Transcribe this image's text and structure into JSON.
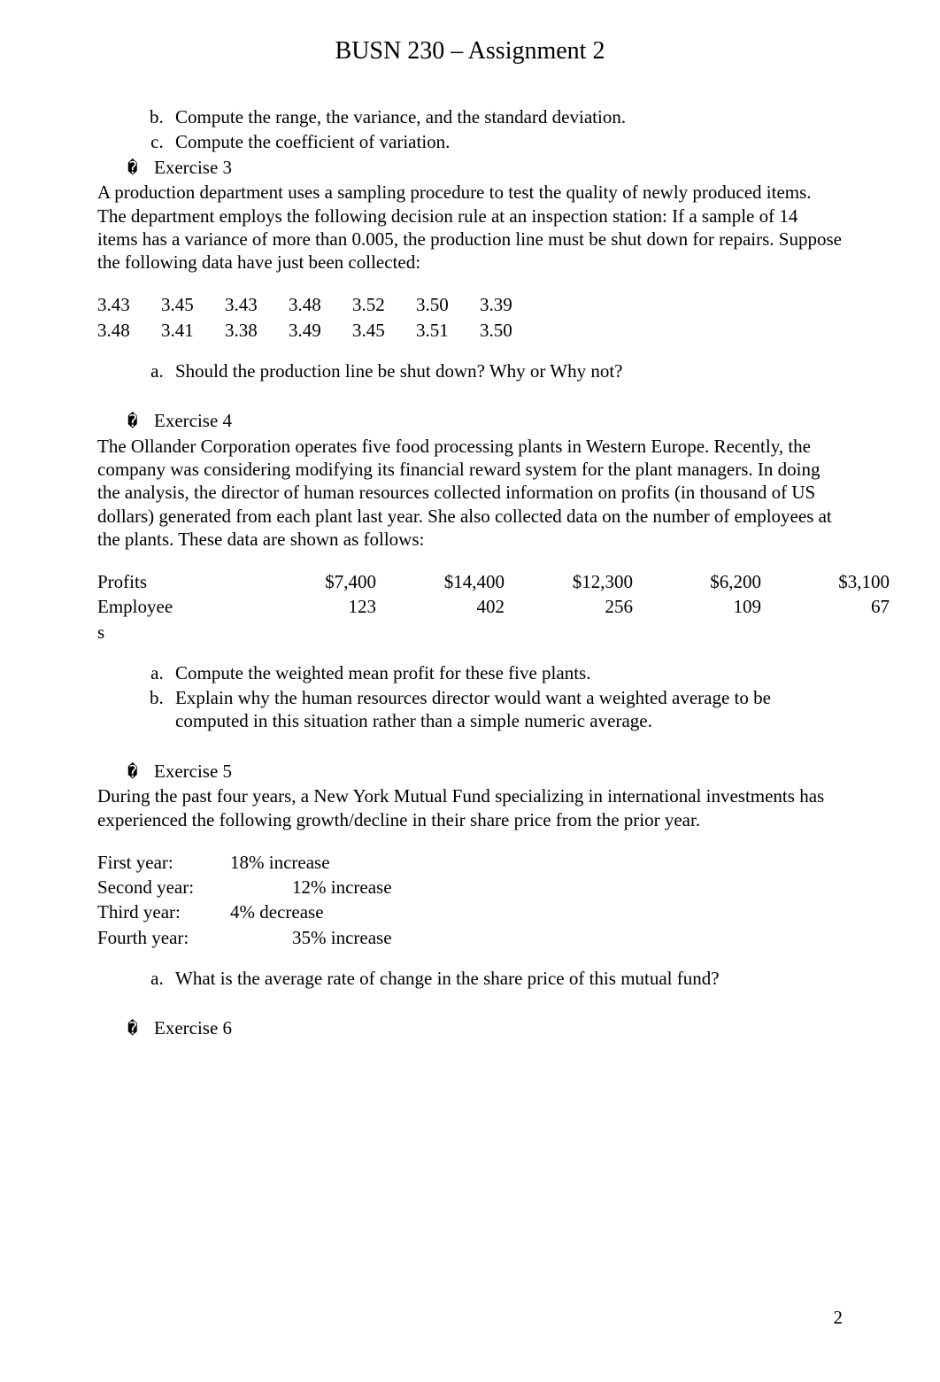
{
  "title": "BUSN 230 – Assignment 2",
  "page_number": "2",
  "bullet_glyph": "�",
  "continued_list": {
    "b": "Compute the range, the variance, and the standard deviation.",
    "c": "Compute the coefficient of variation."
  },
  "ex3": {
    "heading": "Exercise 3",
    "body": "A production department uses a sampling procedure to test the quality of newly produced items. The department employs the following decision rule at an inspection station: If a sample of 14 items has a variance of more than 0.005, the production line must be shut down for repairs. Suppose the following data have just been collected:",
    "data_row1": [
      "3.43",
      "3.45",
      "3.43",
      "3.48",
      "3.52",
      "3.50",
      "3.39"
    ],
    "data_row2": [
      "3.48",
      "3.41",
      "3.38",
      "3.49",
      "3.45",
      "3.51",
      "3.50"
    ],
    "q_a": "Should the production line be shut down? Why or Why not?"
  },
  "ex4": {
    "heading": "Exercise 4",
    "body": "The Ollander Corporation operates five food processing plants in Western Europe. Recently, the company was considering modifying its financial reward system for the plant managers. In doing the analysis, the director of human resources collected information on profits (in thousand of US dollars) generated from each plant last year. She also collected data on the number of employees at the plants. These data are shown as follows:",
    "table": {
      "headers": [
        "Profits",
        "Employees"
      ],
      "row_profits": [
        "$7,400",
        "$14,400",
        "$12,300",
        "$6,200",
        "$3,100"
      ],
      "row_emp": [
        "123",
        "402",
        "256",
        "109",
        "67"
      ],
      "label_profits": "Profits",
      "label_emp1": "Employee",
      "label_emp2": "s"
    },
    "q_a": "Compute the weighted mean profit for these five plants.",
    "q_b": "Explain why the human resources director would want a weighted average to be computed in this situation rather than a simple numeric average."
  },
  "ex5": {
    "heading": "Exercise 5",
    "body": "During the past four years, a New York Mutual Fund specializing in international investments has experienced the following growth/decline in their share price from the prior year.",
    "years": [
      {
        "label": "First year:",
        "value": "18% increase",
        "indent": false
      },
      {
        "label": "Second year:",
        "value": "12% increase",
        "indent": true
      },
      {
        "label": "Third year:",
        "value": "4% decrease",
        "indent": false
      },
      {
        "label": "Fourth year:",
        "value": "35% increase",
        "indent": true
      }
    ],
    "q_a": "What is the average rate of change in the share price of this mutual fund?"
  },
  "ex6": {
    "heading": "Exercise 6"
  }
}
